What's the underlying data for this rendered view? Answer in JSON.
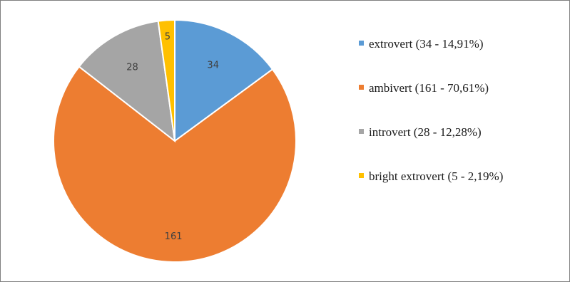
{
  "chart_data": {
    "type": "pie",
    "title": "",
    "slices": [
      {
        "label": "34",
        "value": 34,
        "color": "#5b9bd5",
        "legend": "extrovert (34 - 14,91%)"
      },
      {
        "label": "161",
        "value": 161,
        "color": "#ed7d31",
        "legend": "ambivert (161 - 70,61%)"
      },
      {
        "label": "28",
        "value": 28,
        "color": "#a5a5a5",
        "legend": "introvert (28 - 12,28%)"
      },
      {
        "label": "5",
        "value": 5,
        "color": "#ffc000",
        "legend": "bright extrovert (5 - 2,19%)"
      }
    ],
    "legend_position": "right",
    "start_angle": "12 o'clock, clockwise"
  }
}
